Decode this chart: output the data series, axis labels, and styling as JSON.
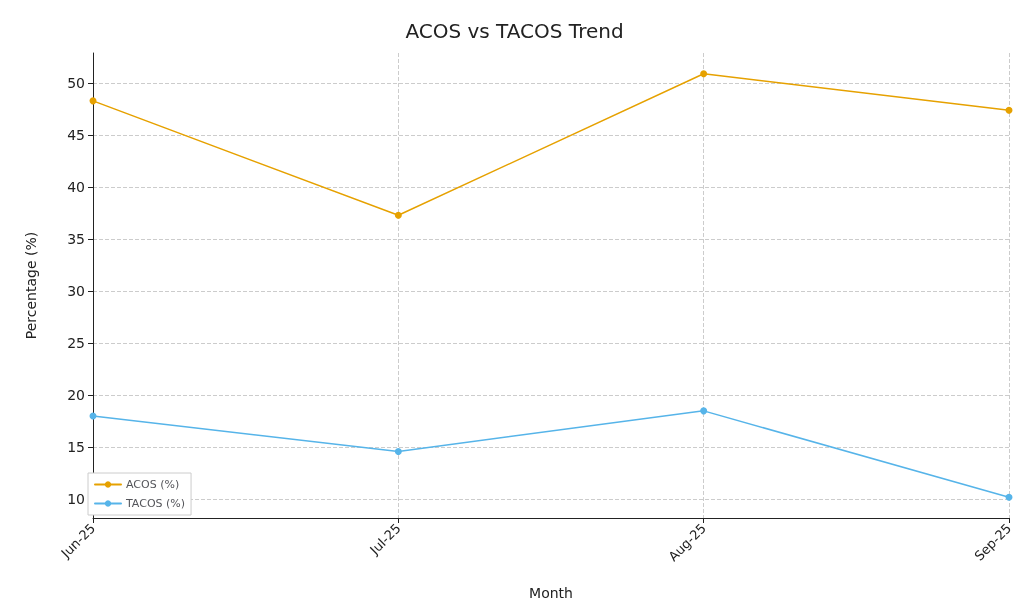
{
  "chart_data": {
    "type": "line",
    "title": "ACOS vs TACOS Trend",
    "xlabel": "Month",
    "ylabel": "Percentage (%)",
    "categories": [
      "Jun-25",
      "Jul-25",
      "Aug-25",
      "Sep-25"
    ],
    "series": [
      {
        "name": "ACOS (%)",
        "color": "#e6a100",
        "values": [
          48.3,
          37.3,
          50.9,
          47.4
        ]
      },
      {
        "name": "TACOS (%)",
        "color": "#56b4e9",
        "values": [
          18.0,
          14.6,
          18.5,
          10.2
        ]
      }
    ],
    "ylim": [
      8.2,
      52.9
    ],
    "yticks": [
      10,
      15,
      20,
      25,
      30,
      35,
      40,
      45,
      50
    ],
    "grid": true,
    "legend": "bottom left",
    "marker": "circle",
    "line_style": "solid"
  }
}
